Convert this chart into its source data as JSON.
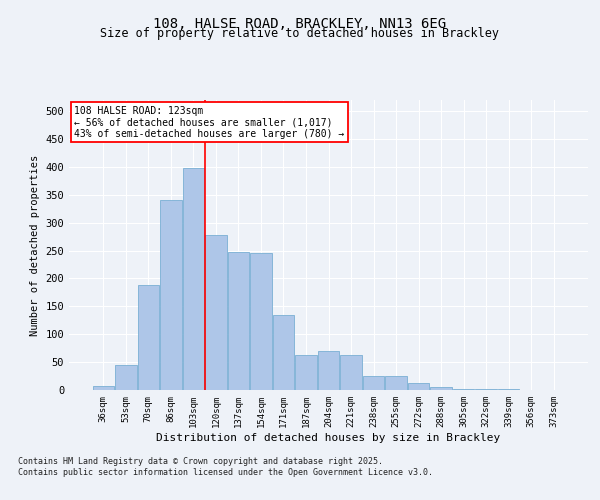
{
  "title_line1": "108, HALSE ROAD, BRACKLEY, NN13 6EG",
  "title_line2": "Size of property relative to detached houses in Brackley",
  "xlabel": "Distribution of detached houses by size in Brackley",
  "ylabel": "Number of detached properties",
  "categories": [
    "36sqm",
    "53sqm",
    "70sqm",
    "86sqm",
    "103sqm",
    "120sqm",
    "137sqm",
    "154sqm",
    "171sqm",
    "187sqm",
    "204sqm",
    "221sqm",
    "238sqm",
    "255sqm",
    "272sqm",
    "288sqm",
    "305sqm",
    "322sqm",
    "339sqm",
    "356sqm",
    "373sqm"
  ],
  "values": [
    8,
    45,
    188,
    340,
    398,
    278,
    248,
    245,
    135,
    62,
    70,
    62,
    25,
    25,
    12,
    5,
    2,
    1,
    1,
    0,
    0
  ],
  "bar_color": "#aec6e8",
  "bar_edge_color": "#7aafd4",
  "vline_x": 4.5,
  "vline_color": "red",
  "annotation_text": "108 HALSE ROAD: 123sqm\n← 56% of detached houses are smaller (1,017)\n43% of semi-detached houses are larger (780) →",
  "ylim": [
    0,
    520
  ],
  "yticks": [
    0,
    50,
    100,
    150,
    200,
    250,
    300,
    350,
    400,
    450,
    500
  ],
  "background_color": "#eef2f8",
  "footer_text": "Contains HM Land Registry data © Crown copyright and database right 2025.\nContains public sector information licensed under the Open Government Licence v3.0.",
  "grid_color": "#ffffff"
}
